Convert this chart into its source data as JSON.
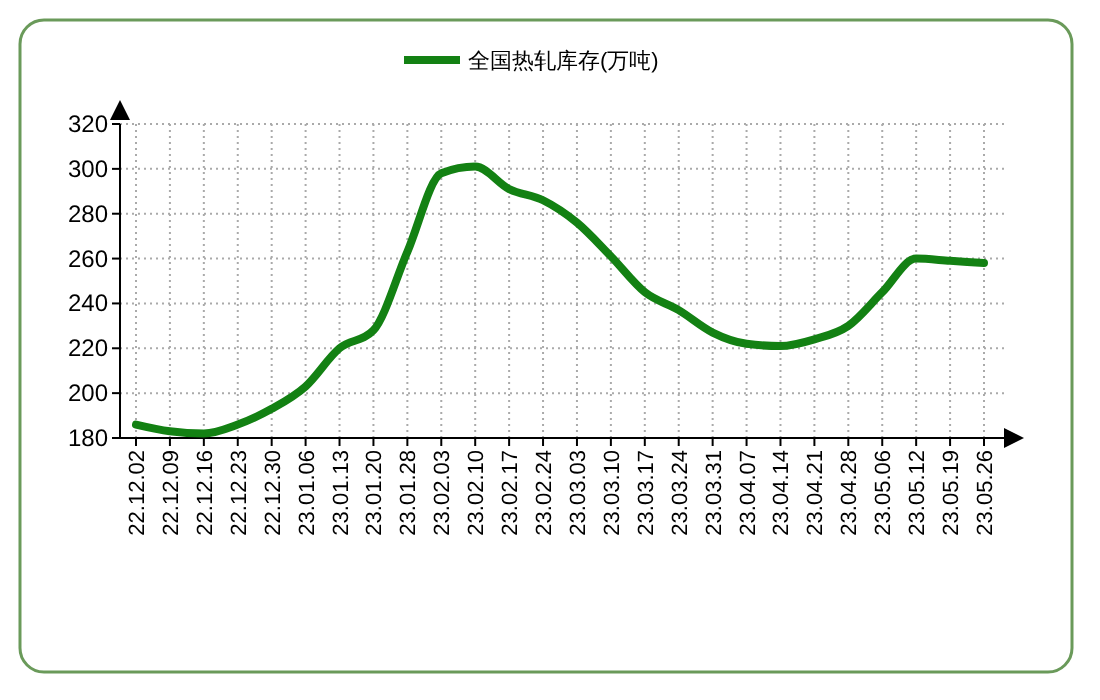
{
  "chart_data": {
    "type": "line",
    "categories": [
      "22.12.02",
      "22.12.09",
      "22.12.16",
      "22.12.23",
      "22.12.30",
      "23.01.06",
      "23.01.13",
      "23.01.20",
      "23.01.28",
      "23.02.03",
      "23.02.10",
      "23.02.17",
      "23.02.24",
      "23.03.03",
      "23.03.10",
      "23.03.17",
      "23.03.24",
      "23.03.31",
      "23.04.07",
      "23.04.14",
      "23.04.21",
      "23.04.28",
      "23.05.06",
      "23.05.12",
      "23.05.19",
      "23.05.26"
    ],
    "series": [
      {
        "name": "全国热轧库存(万吨)",
        "color": "#138113",
        "values": [
          186,
          183,
          182,
          186,
          193,
          203,
          220,
          228,
          263,
          298,
          301,
          291,
          286,
          276,
          261,
          245,
          237,
          227,
          222,
          221,
          224,
          230,
          245,
          260,
          259,
          258
        ]
      }
    ],
    "ylim": [
      180,
      320
    ],
    "yticks": [
      180,
      200,
      220,
      240,
      260,
      280,
      300,
      320
    ],
    "grid": true,
    "legend": "top",
    "marker": "none",
    "line_style": "solid"
  }
}
